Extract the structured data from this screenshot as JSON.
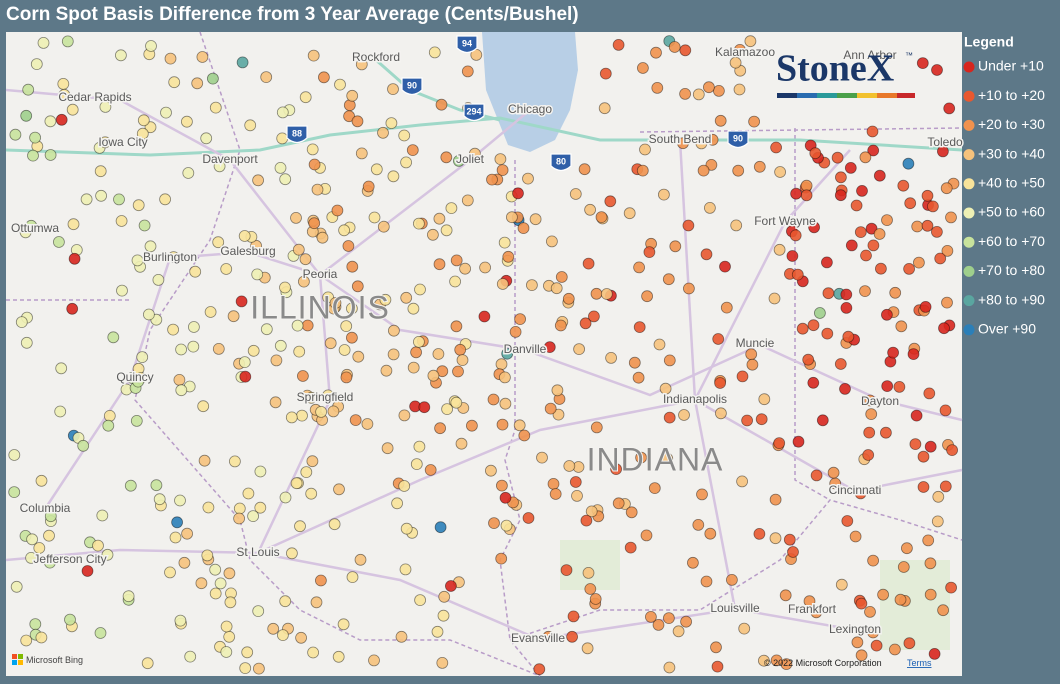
{
  "header": {
    "title": "Corn Spot Basis Difference from 3 Year Average (Cents/Bushel)"
  },
  "legend": {
    "title": "Legend",
    "items": [
      {
        "label": "Under +10",
        "color": "#d7261e"
      },
      {
        "label": "+10 to +20",
        "color": "#e8582f"
      },
      {
        "label": "+20 to +30",
        "color": "#f0924e"
      },
      {
        "label": "+30 to +40",
        "color": "#f6c27c"
      },
      {
        "label": "+40 to +50",
        "color": "#f8e39a"
      },
      {
        "label": "+50 to +60",
        "color": "#eef0b4"
      },
      {
        "label": "+60 to +70",
        "color": "#c8e39c"
      },
      {
        "label": "+70 to +80",
        "color": "#9fcf8c"
      },
      {
        "label": "+80 to +90",
        "color": "#5aa6a0"
      },
      {
        "label": "Over +90",
        "color": "#2b7fb8"
      }
    ]
  },
  "map": {
    "places": [
      "Rockford",
      "Kalamazoo",
      "Ann Arbor",
      "Cedar Rapids",
      "Chicago",
      "Iowa City",
      "Davenport",
      "Joliet",
      "South Bend",
      "Toledo",
      "Ottumwa",
      "Fort Wayne",
      "Burlington",
      "Galesburg",
      "Peoria",
      "Danville",
      "Muncie",
      "Quincy",
      "Springfield",
      "Indianapolis",
      "Dayton",
      "Columbia",
      "Cincinnati",
      "St Louis",
      "Jefferson City",
      "Louisville",
      "Frankfort",
      "Lexington",
      "Evansville"
    ],
    "states": [
      "ILLINOIS",
      "INDIANA"
    ],
    "shields": [
      "94",
      "90",
      "294",
      "88",
      "80",
      "90"
    ]
  },
  "logo": {
    "text": "StoneX",
    "mark": "™"
  },
  "footer": {
    "provider": "Microsoft Bing",
    "copyright": "© 2022 Microsoft Corporation",
    "terms": "Terms"
  }
}
